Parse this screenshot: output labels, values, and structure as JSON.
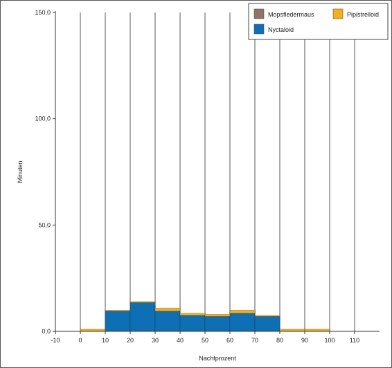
{
  "chart_data": {
    "type": "bar",
    "stacked": true,
    "xlabel": "Nachtprozent",
    "ylabel": "Minuten",
    "xlim": [
      -10,
      120
    ],
    "ylim": [
      0,
      150
    ],
    "x_ticks": [
      "-10",
      "0",
      "10",
      "20",
      "30",
      "40",
      "50",
      "60",
      "70",
      "80",
      "90",
      "100",
      "110"
    ],
    "y_ticks": [
      {
        "value": 0,
        "label": "0,0"
      },
      {
        "value": 50,
        "label": "50,0"
      },
      {
        "value": 100,
        "label": "100,0"
      },
      {
        "value": 150,
        "label": "150,0"
      }
    ],
    "bin_starts": [
      0,
      10,
      20,
      30,
      40,
      50,
      60,
      70,
      80,
      90
    ],
    "bin_width": 10,
    "series": [
      {
        "name": "Mopsfledermaus",
        "color": "#8e7466",
        "values": [
          0,
          0,
          0,
          0,
          0,
          0,
          0,
          0,
          0,
          0
        ]
      },
      {
        "name": "Nyctaloid",
        "color": "#0f6fb4",
        "values": [
          0,
          9.5,
          13.5,
          9.5,
          7.5,
          7,
          8.5,
          7,
          0,
          0
        ]
      },
      {
        "name": "Pipistrelloid",
        "color": "#f2b01e",
        "values": [
          1,
          0.5,
          0.5,
          1.5,
          1,
          1,
          1.5,
          0.5,
          1,
          1
        ]
      }
    ],
    "vertical_gridlines": [
      0,
      10,
      20,
      30,
      40,
      50,
      60,
      70,
      80,
      90,
      100,
      110
    ],
    "grid_color": "#aaaaaa",
    "legend": {
      "position": "top-right",
      "entries": [
        "Mopsfledermaus",
        "Pipistrelloid",
        "Nyctaloid"
      ]
    }
  }
}
